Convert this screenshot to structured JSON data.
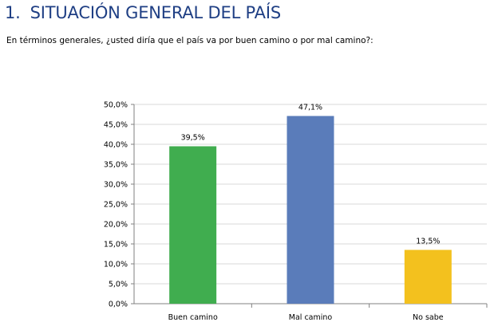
{
  "section": {
    "number": "1.",
    "title": "SITUACIÓN GENERAL DEL PAÍS"
  },
  "question": "En términos generales, ¿usted diría que el país va por buen camino o por mal camino?:",
  "colors": {
    "title": "#1f3f84",
    "buen": "#40ad4f",
    "mal": "#5a7cba",
    "nosabe": "#f3c11e",
    "grid": "#d9d9d9"
  },
  "chart_data": {
    "type": "bar",
    "categories": [
      "Buen camino",
      "Mal camino",
      "No sabe"
    ],
    "values": [
      39.5,
      47.1,
      13.5
    ],
    "data_labels": [
      "39,5%",
      "47,1%",
      "13,5%"
    ],
    "y_ticks": [
      "0,0%",
      "5,0%",
      "10,0%",
      "15,0%",
      "20,0%",
      "25,0%",
      "30,0%",
      "35,0%",
      "40,0%",
      "45,0%",
      "50,0%"
    ],
    "ylim": [
      0,
      50
    ],
    "grid": true,
    "title": "",
    "xlabel": "",
    "ylabel": ""
  }
}
